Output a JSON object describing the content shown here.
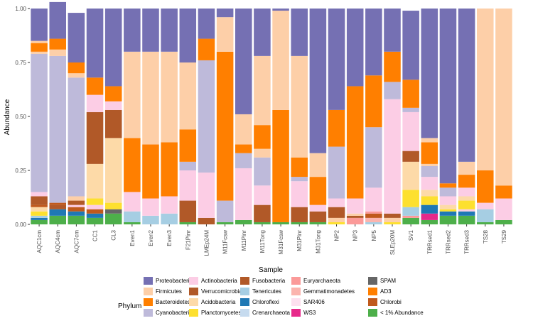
{
  "chart_data": {
    "type": "stacked-bar",
    "xlabel": "Sample",
    "ylabel": "Abundance",
    "ylim": [
      0,
      1
    ],
    "yticks": [
      "0.00",
      "0.25",
      "0.50",
      "0.75",
      "1.00"
    ],
    "legend_title": "Phylum",
    "legend_position": "bottom",
    "phyla": [
      {
        "name": "Proteobacteria",
        "color": "#7570b3"
      },
      {
        "name": "Firmicutes",
        "color": "#fdcfa8"
      },
      {
        "name": "Bacteroidetes",
        "color": "#ff7f00"
      },
      {
        "name": "Cyanobacteria",
        "color": "#bebada"
      },
      {
        "name": "Actinobacteria",
        "color": "#fccde5"
      },
      {
        "name": "Verrucomicrobia",
        "color": "#b15928"
      },
      {
        "name": "Acidobacteria",
        "color": "#fddaa8"
      },
      {
        "name": "Planctomycetes",
        "color": "#fde02f"
      },
      {
        "name": "Fusobacteria",
        "color": "#b15928"
      },
      {
        "name": "Tenericutes",
        "color": "#a6cee3"
      },
      {
        "name": "Chloroflexi",
        "color": "#1f78b4"
      },
      {
        "name": "Crenarchaeota",
        "color": "#c6dbef"
      },
      {
        "name": "Euryarchaeota",
        "color": "#fb9a99"
      },
      {
        "name": "Gemmatimonadetes",
        "color": "#fbb4ae"
      },
      {
        "name": "SAR406",
        "color": "#fde0ef"
      },
      {
        "name": "WS3",
        "color": "#e7298a"
      },
      {
        "name": "SPAM",
        "color": "#666666"
      },
      {
        "name": "AD3",
        "color": "#ff7f00"
      },
      {
        "name": "Chlorobi",
        "color": "#c0591c"
      },
      {
        "name": "< 1% Abundance",
        "color": "#4daf4a"
      }
    ],
    "samples": [
      {
        "name": "AQC1cm",
        "segments": [
          [
            "< 1% Abundance",
            0.02
          ],
          [
            "Chloroflexi",
            0.01
          ],
          [
            "Tenericutes",
            0.01
          ],
          [
            "Planctomycetes",
            0.02
          ],
          [
            "Acidobacteria",
            0.02
          ],
          [
            "Chlorobi",
            0.01
          ],
          [
            "Verrucomicrobia",
            0.04
          ],
          [
            "Actinobacteria",
            0.02
          ],
          [
            "Cyanobacteria",
            0.64
          ],
          [
            "Firmicutes",
            0.01
          ],
          [
            "Bacteroidetes",
            0.04
          ],
          [
            "Firmicutes",
            0.01
          ],
          [
            "Proteobacteria",
            0.15
          ]
        ]
      },
      {
        "name": "AQC4cm",
        "segments": [
          [
            "< 1% Abundance",
            0.04
          ],
          [
            "Chloroflexi",
            0.03
          ],
          [
            "Verrucomicrobia",
            0.02
          ],
          [
            "Chlorobi",
            0.01
          ],
          [
            "Cyanobacteria",
            0.68
          ],
          [
            "Firmicutes",
            0.03
          ],
          [
            "Bacteroidetes",
            0.05
          ],
          [
            "Proteobacteria",
            0.17
          ]
        ]
      },
      {
        "name": "AQC7cm",
        "segments": [
          [
            "< 1% Abundance",
            0.04
          ],
          [
            "Chloroflexi",
            0.02
          ],
          [
            "Chlorobi",
            0.02
          ],
          [
            "Actinobacteria",
            0.01
          ],
          [
            "Verrucomicrobia",
            0.02
          ],
          [
            "Firmicutes",
            0.02
          ],
          [
            "Cyanobacteria",
            0.55
          ],
          [
            "Firmicutes",
            0.02
          ],
          [
            "Bacteroidetes",
            0.05
          ],
          [
            "Proteobacteria",
            0.23
          ]
        ]
      },
      {
        "name": "CC1",
        "segments": [
          [
            "< 1% Abundance",
            0.03
          ],
          [
            "Chloroflexi",
            0.02
          ],
          [
            "Chlorobi",
            0.02
          ],
          [
            "Actinobacteria",
            0.02
          ],
          [
            "Planctomycetes",
            0.03
          ],
          [
            "Acidobacteria",
            0.16
          ],
          [
            "Verrucomicrobia",
            0.24
          ],
          [
            "Actinobacteria",
            0.08
          ],
          [
            "Bacteroidetes",
            0.08
          ],
          [
            "Proteobacteria",
            0.32
          ]
        ]
      },
      {
        "name": "CL3",
        "segments": [
          [
            "< 1% Abundance",
            0.05
          ],
          [
            "SPAM",
            0.02
          ],
          [
            "Planctomycetes",
            0.03
          ],
          [
            "Acidobacteria",
            0.3
          ],
          [
            "Verrucomicrobia",
            0.13
          ],
          [
            "Actinobacteria",
            0.04
          ],
          [
            "Bacteroidetes",
            0.07
          ],
          [
            "Proteobacteria",
            0.36
          ]
        ]
      },
      {
        "name": "Even1",
        "segments": [
          [
            "< 1% Abundance",
            0.01
          ],
          [
            "Tenericutes",
            0.05
          ],
          [
            "Actinobacteria",
            0.09
          ],
          [
            "Bacteroidetes",
            0.25
          ],
          [
            "Firmicutes",
            0.4
          ],
          [
            "Proteobacteria",
            0.2
          ]
        ]
      },
      {
        "name": "Even2",
        "segments": [
          [
            "Tenericutes",
            0.04
          ],
          [
            "Actinobacteria",
            0.08
          ],
          [
            "Bacteroidetes",
            0.25
          ],
          [
            "Firmicutes",
            0.43
          ],
          [
            "Proteobacteria",
            0.2
          ]
        ]
      },
      {
        "name": "Even3",
        "segments": [
          [
            "Tenericutes",
            0.05
          ],
          [
            "Actinobacteria",
            0.08
          ],
          [
            "Bacteroidetes",
            0.25
          ],
          [
            "Firmicutes",
            0.42
          ],
          [
            "Proteobacteria",
            0.2
          ]
        ]
      },
      {
        "name": "F21Pinr",
        "segments": [
          [
            "< 1% Abundance",
            0.01
          ],
          [
            "Fusobacteria",
            0.1
          ],
          [
            "Actinobacteria",
            0.14
          ],
          [
            "Cyanobacteria",
            0.04
          ],
          [
            "Bacteroidetes",
            0.15
          ],
          [
            "Firmicutes",
            0.31
          ],
          [
            "Proteobacteria",
            0.25
          ]
        ]
      },
      {
        "name": "LMEp24M",
        "segments": [
          [
            "Fusobacteria",
            0.03
          ],
          [
            "Actinobacteria",
            0.21
          ],
          [
            "Cyanobacteria",
            0.52
          ],
          [
            "Bacteroidetes",
            0.1
          ],
          [
            "Proteobacteria",
            0.14
          ]
        ]
      },
      {
        "name": "M11Fcsw",
        "segments": [
          [
            "< 1% Abundance",
            0.01
          ],
          [
            "Cyanobacteria",
            0.1
          ],
          [
            "Bacteroidetes",
            0.69
          ],
          [
            "Firmicutes",
            0.16
          ],
          [
            "Proteobacteria",
            0.04
          ]
        ]
      },
      {
        "name": "M11Pinr",
        "segments": [
          [
            "< 1% Abundance",
            0.02
          ],
          [
            "Actinobacteria",
            0.24
          ],
          [
            "Cyanobacteria",
            0.07
          ],
          [
            "Bacteroidetes",
            0.04
          ],
          [
            "Firmicutes",
            0.14
          ],
          [
            "Proteobacteria",
            0.49
          ]
        ]
      },
      {
        "name": "M11Tong",
        "segments": [
          [
            "< 1% Abundance",
            0.01
          ],
          [
            "Fusobacteria",
            0.08
          ],
          [
            "Actinobacteria",
            0.09
          ],
          [
            "Cyanobacteria",
            0.13
          ],
          [
            "Firmicutes",
            0.04
          ],
          [
            "Bacteroidetes",
            0.11
          ],
          [
            "Firmicutes",
            0.32
          ],
          [
            "Proteobacteria",
            0.22
          ]
        ]
      },
      {
        "name": "M31Fcsw",
        "segments": [
          [
            "< 1% Abundance",
            0.01
          ],
          [
            "Bacteroidetes",
            0.52
          ],
          [
            "Firmicutes",
            0.46
          ],
          [
            "Proteobacteria",
            0.01
          ]
        ]
      },
      {
        "name": "M31Pinr",
        "segments": [
          [
            "< 1% Abundance",
            0.01
          ],
          [
            "Fusobacteria",
            0.07
          ],
          [
            "Actinobacteria",
            0.12
          ],
          [
            "Cyanobacteria",
            0.02
          ],
          [
            "Bacteroidetes",
            0.09
          ],
          [
            "Firmicutes",
            0.47
          ],
          [
            "Proteobacteria",
            0.22
          ]
        ]
      },
      {
        "name": "M31Tong",
        "segments": [
          [
            "< 1% Abundance",
            0.01
          ],
          [
            "Fusobacteria",
            0.05
          ],
          [
            "Actinobacteria",
            0.03
          ],
          [
            "Bacteroidetes",
            0.13
          ],
          [
            "Firmicutes",
            0.11
          ],
          [
            "Proteobacteria",
            0.67
          ]
        ]
      },
      {
        "name": "NP2",
        "segments": [
          [
            "Planctomycetes",
            0.01
          ],
          [
            "Firmicutes",
            0.02
          ],
          [
            "Fusobacteria",
            0.05
          ],
          [
            "Actinobacteria",
            0.04
          ],
          [
            "Cyanobacteria",
            0.24
          ],
          [
            "Bacteroidetes",
            0.17
          ],
          [
            "Proteobacteria",
            0.47
          ]
        ]
      },
      {
        "name": "NP3",
        "segments": [
          [
            "Euryarchaeota",
            0.03
          ],
          [
            "Verrucomicrobia",
            0.01
          ],
          [
            "Firmicutes",
            0.01
          ],
          [
            "Actinobacteria",
            0.07
          ],
          [
            "Bacteroidetes",
            0.52
          ],
          [
            "Proteobacteria",
            0.36
          ]
        ]
      },
      {
        "name": "NP5",
        "segments": [
          [
            "Tenericutes",
            0.01
          ],
          [
            "Gemmatimonadetes",
            0.02
          ],
          [
            "Chlorobi",
            0.02
          ],
          [
            "Euryarchaeota",
            0.01
          ],
          [
            "Actinobacteria",
            0.11
          ],
          [
            "Cyanobacteria",
            0.28
          ],
          [
            "Bacteroidetes",
            0.24
          ],
          [
            "Proteobacteria",
            0.31
          ]
        ]
      },
      {
        "name": "SLEp20M",
        "segments": [
          [
            "Planctomycetes",
            0.01
          ],
          [
            "Firmicutes",
            0.02
          ],
          [
            "Fusobacteria",
            0.02
          ],
          [
            "Actinobacteria",
            0.53
          ],
          [
            "Cyanobacteria",
            0.08
          ],
          [
            "Bacteroidetes",
            0.14
          ],
          [
            "Proteobacteria",
            0.2
          ]
        ]
      },
      {
        "name": "SV1",
        "segments": [
          [
            "< 1% Abundance",
            0.03
          ],
          [
            "Euryarchaeota",
            0.01
          ],
          [
            "Tenericutes",
            0.04
          ],
          [
            "Planctomycetes",
            0.08
          ],
          [
            "Acidobacteria",
            0.13
          ],
          [
            "Fusobacteria",
            0.05
          ],
          [
            "Actinobacteria",
            0.18
          ],
          [
            "Cyanobacteria",
            0.02
          ],
          [
            "Bacteroidetes",
            0.13
          ],
          [
            "Proteobacteria",
            0.32
          ]
        ]
      },
      {
        "name": "TRRsed1",
        "segments": [
          [
            "< 1% Abundance",
            0.02
          ],
          [
            "WS3",
            0.03
          ],
          [
            "Chloroflexi",
            0.04
          ],
          [
            "Planctomycetes",
            0.04
          ],
          [
            "Acidobacteria",
            0.03
          ],
          [
            "Actinobacteria",
            0.06
          ],
          [
            "Cyanobacteria",
            0.05
          ],
          [
            "Firmicutes",
            0.01
          ],
          [
            "Bacteroidetes",
            0.1
          ],
          [
            "Firmicutes",
            0.02
          ],
          [
            "Proteobacteria",
            0.6
          ]
        ]
      },
      {
        "name": "TRRsed2",
        "segments": [
          [
            "< 1% Abundance",
            0.04
          ],
          [
            "Chloroflexi",
            0.02
          ],
          [
            "Planctomycetes",
            0.01
          ],
          [
            "Acidobacteria",
            0.02
          ],
          [
            "Actinobacteria",
            0.04
          ],
          [
            "Cyanobacteria",
            0.04
          ],
          [
            "Bacteroidetes",
            0.02
          ],
          [
            "Proteobacteria",
            0.81
          ]
        ]
      },
      {
        "name": "TRRsed3",
        "segments": [
          [
            "< 1% Abundance",
            0.04
          ],
          [
            "Chloroflexi",
            0.02
          ],
          [
            "Actinobacteria",
            0.01
          ],
          [
            "Planctomycetes",
            0.04
          ],
          [
            "Acidobacteria",
            0.02
          ],
          [
            "Actinobacteria",
            0.04
          ],
          [
            "Bacteroidetes",
            0.06
          ],
          [
            "Firmicutes",
            0.06
          ],
          [
            "Proteobacteria",
            0.71
          ]
        ]
      },
      {
        "name": "TS28",
        "segments": [
          [
            "< 1% Abundance",
            0.01
          ],
          [
            "Tenericutes",
            0.06
          ],
          [
            "Actinobacteria",
            0.03
          ],
          [
            "Bacteroidetes",
            0.15
          ],
          [
            "Firmicutes",
            0.75
          ]
        ]
      },
      {
        "name": "TS29",
        "segments": [
          [
            "< 1% Abundance",
            0.02
          ],
          [
            "Actinobacteria",
            0.1
          ],
          [
            "Bacteroidetes",
            0.06
          ],
          [
            "Firmicutes",
            0.82
          ]
        ]
      }
    ]
  }
}
